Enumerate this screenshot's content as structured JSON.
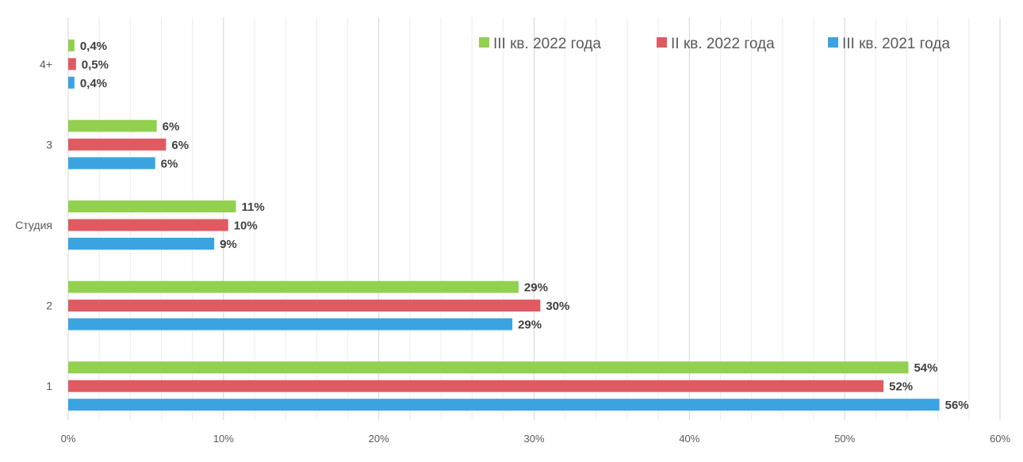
{
  "chart_data": {
    "type": "bar",
    "orientation": "horizontal",
    "categories": [
      "1",
      "2",
      "Студия",
      "3",
      "4+"
    ],
    "xlim": [
      0,
      60
    ],
    "x_ticks": [
      "0%",
      "10%",
      "20%",
      "30%",
      "40%",
      "50%",
      "60%"
    ],
    "grid": true,
    "legend_position": "top-right",
    "series": [
      {
        "name": "III кв. 2022 года",
        "color": "#92D050",
        "values": [
          54.1,
          29,
          10.8,
          5.7,
          0.4
        ],
        "labels": [
          "54%",
          "29%",
          "11%",
          "6%",
          "0,4%"
        ]
      },
      {
        "name": "II кв. 2022 года",
        "color": "#E05A62",
        "values": [
          52.5,
          30.4,
          10.3,
          6.3,
          0.5
        ],
        "labels": [
          "52%",
          "30%",
          "10%",
          "6%",
          "0,5%"
        ]
      },
      {
        "name": "III кв. 2021 года",
        "color": "#3BA3E0",
        "values": [
          56.1,
          28.6,
          9.4,
          5.6,
          0.4
        ],
        "labels": [
          "56%",
          "29%",
          "9%",
          "6%",
          "0,4%"
        ]
      }
    ]
  }
}
